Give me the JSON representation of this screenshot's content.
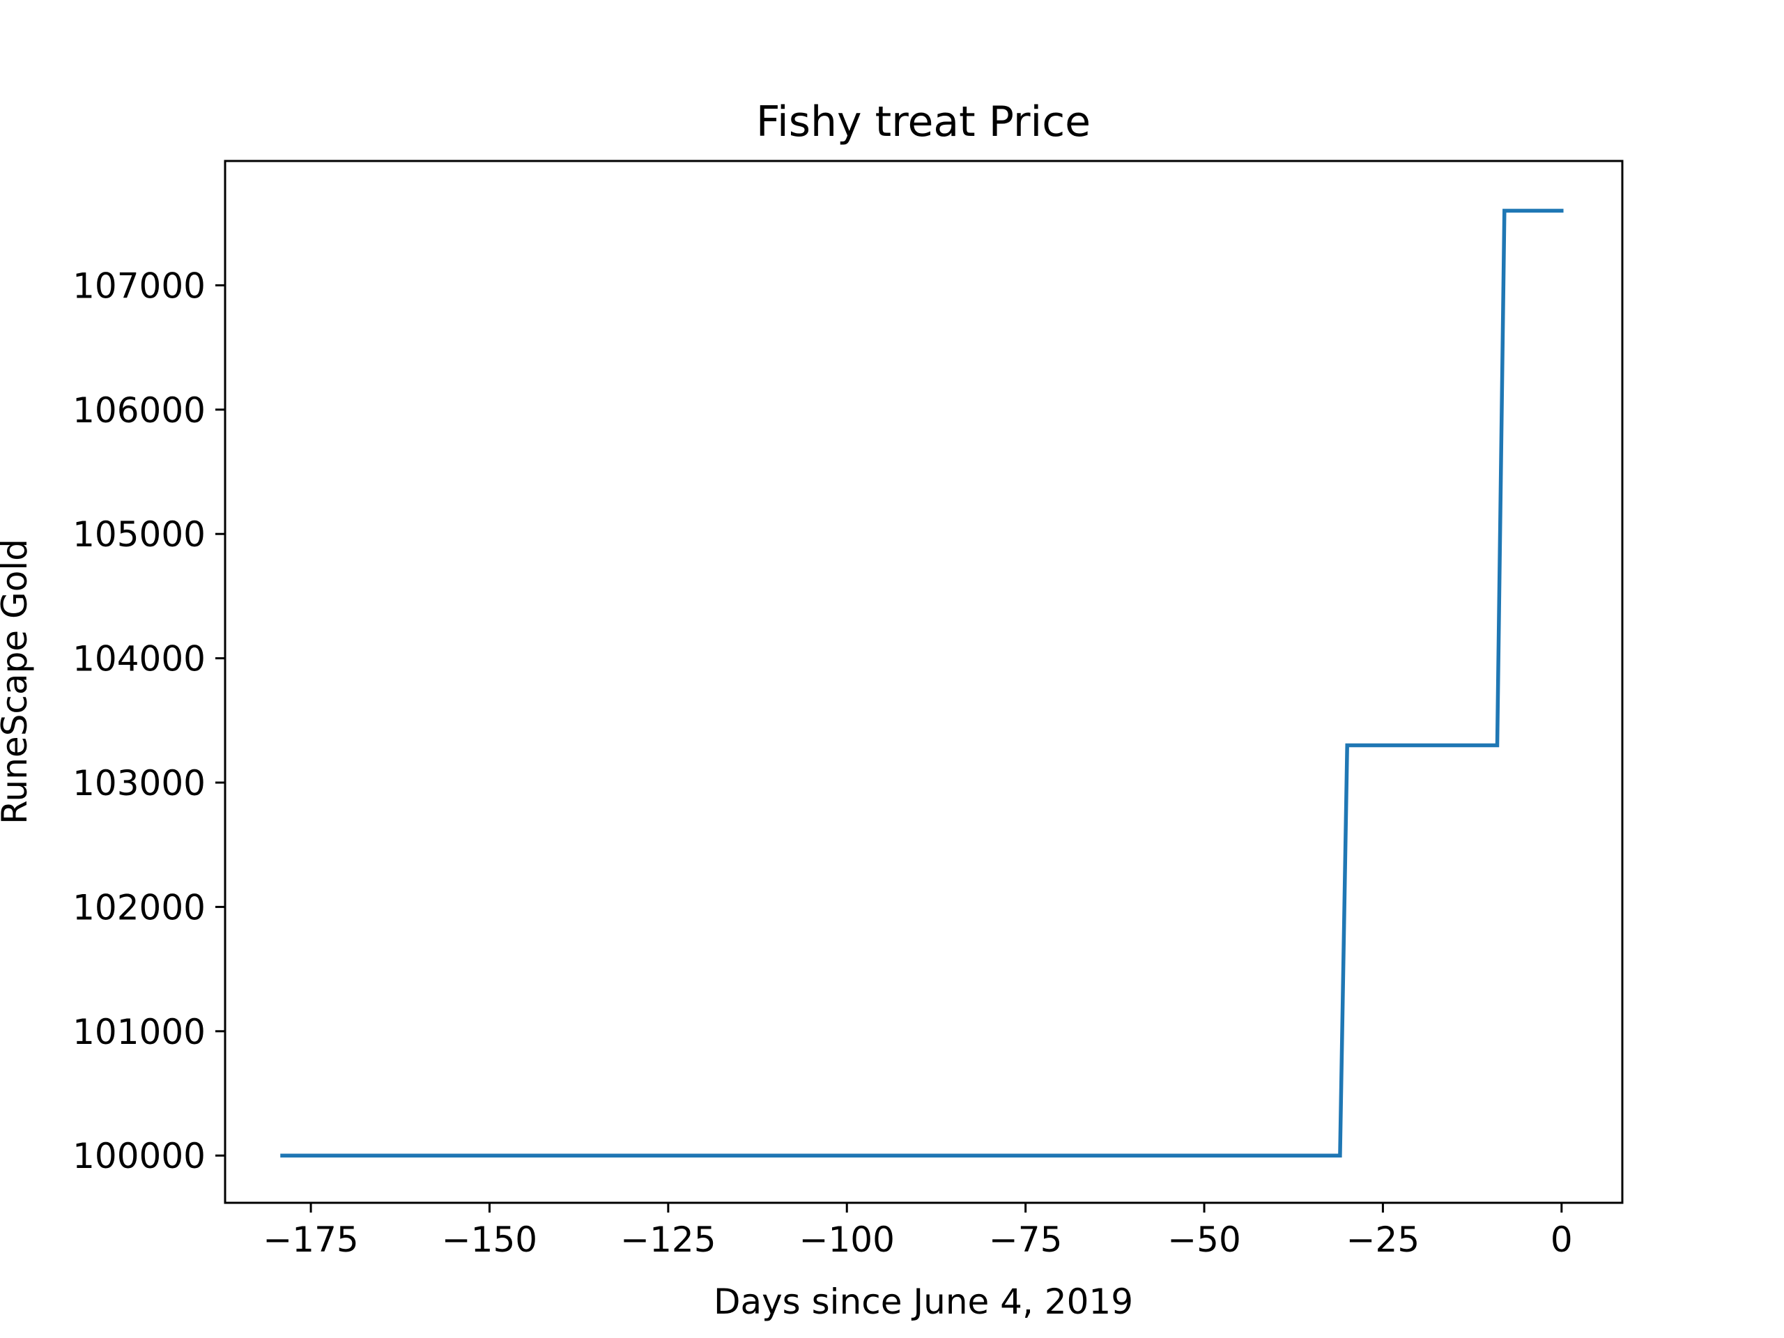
{
  "chart_data": {
    "type": "line",
    "title": "Fishy treat Price",
    "xlabel": "Days since June 4, 2019",
    "ylabel": "RuneScape Gold",
    "xlim": [
      -187,
      8.5
    ],
    "ylim": [
      99620,
      108000
    ],
    "xticks": [
      -175,
      -150,
      -125,
      -100,
      -75,
      -50,
      -25,
      0
    ],
    "xtick_labels": [
      "−175",
      "−150",
      "−125",
      "−100",
      "−75",
      "−50",
      "−25",
      "0"
    ],
    "yticks": [
      100000,
      101000,
      102000,
      103000,
      104000,
      105000,
      106000,
      107000
    ],
    "ytick_labels": [
      "100000",
      "101000",
      "102000",
      "103000",
      "104000",
      "105000",
      "106000",
      "107000"
    ],
    "grid": false,
    "legend": "none",
    "series": [
      {
        "color": "#1f77b4",
        "x": [
          -179,
          -31,
          -30,
          -9,
          -8,
          0
        ],
        "y": [
          100000,
          100000,
          103300,
          103300,
          107600,
          107600
        ]
      }
    ]
  }
}
